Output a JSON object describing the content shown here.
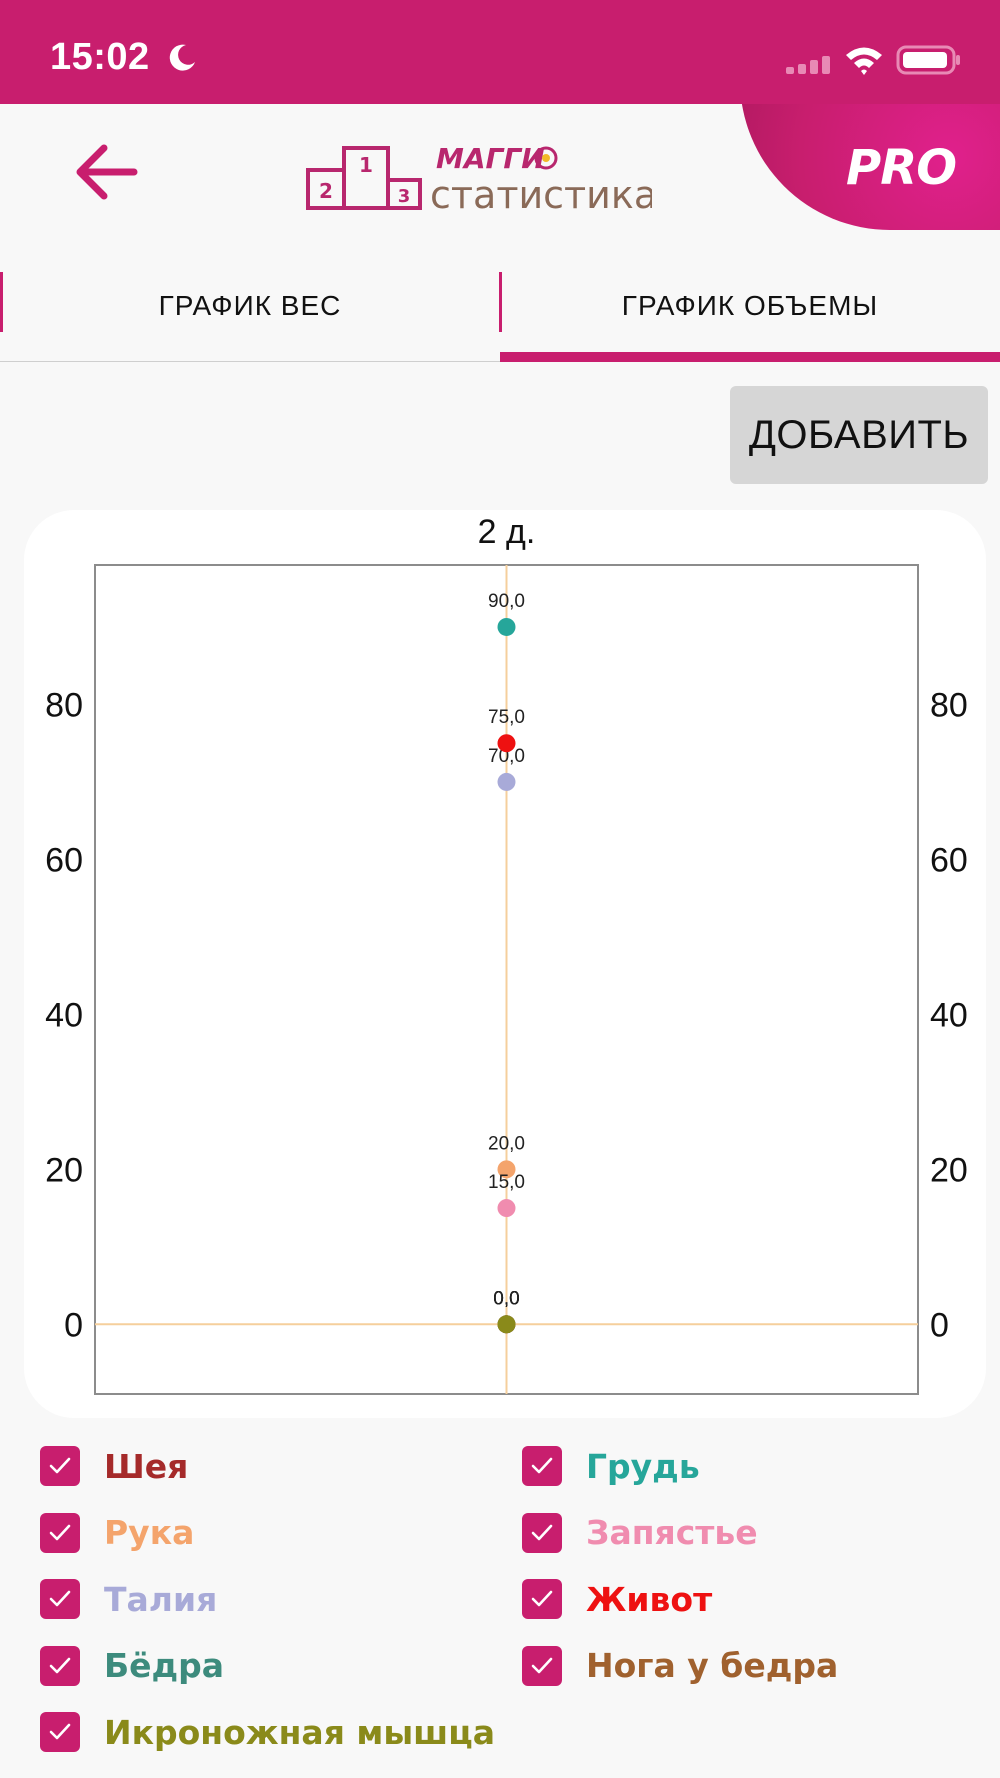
{
  "status_bar": {
    "time": "15:02"
  },
  "header": {
    "logo_brand": "МАГГИ",
    "logo_text": "статистика",
    "pro_label": "PRO"
  },
  "tabs": [
    {
      "label": "ГРАФИК ВЕС",
      "active": false
    },
    {
      "label": "ГРАФИК ОБЪЕМЫ",
      "active": true
    }
  ],
  "add_button": {
    "label": "ДОБАВИТЬ"
  },
  "colors": {
    "accent": "#c81e6e",
    "neck": "#a52a2a",
    "chest": "#26a69a",
    "arm": "#f4a46c",
    "wrist": "#f08caf",
    "waist": "#a8aad8",
    "belly": "#ee1111",
    "hips": "#3d8b7d",
    "thigh": "#a0612e",
    "calf": "#8a8a1a"
  },
  "chart_data": {
    "type": "scatter",
    "title": "2 д.",
    "ylim": [
      -9,
      98
    ],
    "yticks": [
      0,
      20,
      40,
      60,
      80
    ],
    "ytick_labels": [
      "0",
      "20",
      "40",
      "60",
      "80"
    ],
    "grid": false,
    "series": [
      {
        "name": "Шея",
        "color": "#a52a2a",
        "value": 0,
        "label": "0,0"
      },
      {
        "name": "Грудь",
        "color": "#26a69a",
        "value": 90,
        "label": "90,0"
      },
      {
        "name": "Рука",
        "color": "#f4a46c",
        "value": 20,
        "label": "20,0"
      },
      {
        "name": "Запястье",
        "color": "#f08caf",
        "value": 15,
        "label": "15,0"
      },
      {
        "name": "Талия",
        "color": "#a8aad8",
        "value": 70,
        "label": "70,0"
      },
      {
        "name": "Живот",
        "color": "#ee1111",
        "value": 75,
        "label": "75,0"
      },
      {
        "name": "Бёдра",
        "color": "#3d8b7d",
        "value": 0,
        "label": "0,0"
      },
      {
        "name": "Нога у бедра",
        "color": "#a0612e",
        "value": 0,
        "label": "0,0"
      },
      {
        "name": "Икроножная мышца",
        "color": "#8a8a1a",
        "value": 0,
        "label": "0,0"
      }
    ]
  },
  "legend": [
    {
      "label": "Шея",
      "color": "#a52a2a",
      "checked": true
    },
    {
      "label": "Грудь",
      "color": "#26a69a",
      "checked": true
    },
    {
      "label": "Рука",
      "color": "#f4a46c",
      "checked": true
    },
    {
      "label": "Запястье",
      "color": "#f08caf",
      "checked": true
    },
    {
      "label": "Талия",
      "color": "#a8aad8",
      "checked": true
    },
    {
      "label": "Живот",
      "color": "#ee1111",
      "checked": true
    },
    {
      "label": "Бёдра",
      "color": "#3d8b7d",
      "checked": true
    },
    {
      "label": "Нога у бедра",
      "color": "#a0612e",
      "checked": true
    },
    {
      "label": "Икроножная мышца",
      "color": "#8a8a1a",
      "checked": true
    }
  ]
}
